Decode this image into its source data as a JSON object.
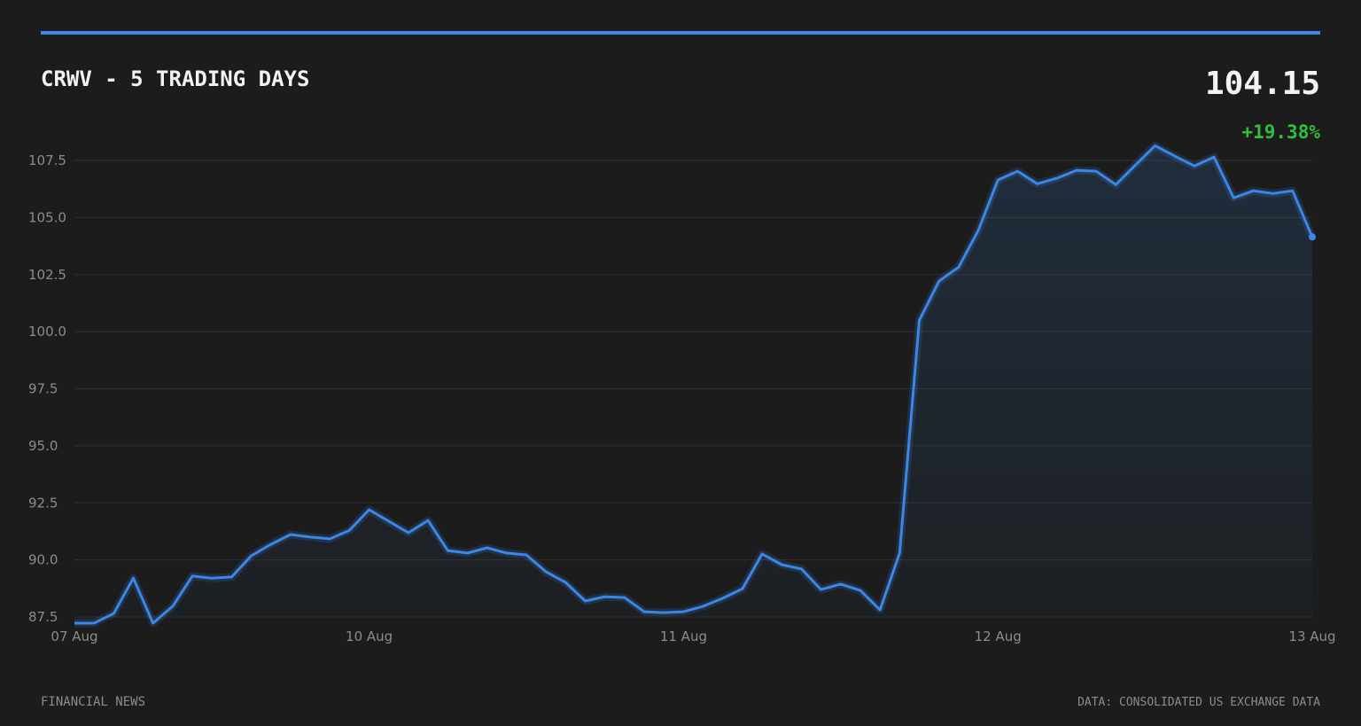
{
  "chart_data": {
    "type": "line",
    "title": "CRWV - 5 TRADING DAYS",
    "last_price": "104.15",
    "change": "+19.38%",
    "footer_left": "FINANCIAL NEWS",
    "footer_right": "DATA: CONSOLIDATED US EXCHANGE DATA",
    "categories": [
      "07 Aug",
      null,
      null,
      null,
      null,
      null,
      null,
      null,
      null,
      null,
      null,
      null,
      null,
      null,
      null,
      "10 Aug",
      null,
      null,
      null,
      null,
      null,
      null,
      null,
      null,
      null,
      null,
      null,
      null,
      null,
      null,
      null,
      "11 Aug",
      null,
      null,
      null,
      null,
      null,
      null,
      null,
      null,
      null,
      null,
      null,
      null,
      null,
      null,
      null,
      "12 Aug",
      null,
      null,
      null,
      null,
      null,
      null,
      null,
      null,
      null,
      null,
      null,
      null,
      null,
      null,
      null,
      "13 Aug"
    ],
    "values": [
      87.23,
      87.23,
      87.65,
      89.2,
      87.23,
      87.97,
      89.29,
      89.2,
      89.25,
      90.18,
      90.68,
      91.11,
      91.0,
      90.92,
      91.3,
      92.2,
      91.69,
      91.19,
      91.73,
      90.41,
      90.3,
      90.53,
      90.3,
      90.22,
      89.48,
      89.01,
      88.2,
      88.39,
      88.35,
      87.73,
      87.69,
      87.73,
      87.97,
      88.32,
      88.74,
      90.26,
      89.79,
      89.6,
      88.7,
      88.94,
      88.66,
      87.81,
      90.3,
      100.5,
      102.21,
      102.83,
      104.43,
      106.64,
      107.03,
      106.48,
      106.72,
      107.07,
      107.03,
      106.44,
      107.3,
      108.15,
      107.69,
      107.26,
      107.65,
      105.86,
      106.17,
      106.05,
      106.17,
      104.15
    ],
    "color": "#3b86e6",
    "ylim": [
      87.5,
      107.5
    ],
    "yticks": [
      87.5,
      {
        "value": 90,
        "label": "90.0"
      },
      92.5,
      {
        "value": 95,
        "label": "95.0"
      },
      97.5,
      {
        "value": 100,
        "label": "100.0"
      },
      102.5,
      {
        "value": 105,
        "label": "105.0"
      },
      107.5
    ],
    "grid": true
  }
}
